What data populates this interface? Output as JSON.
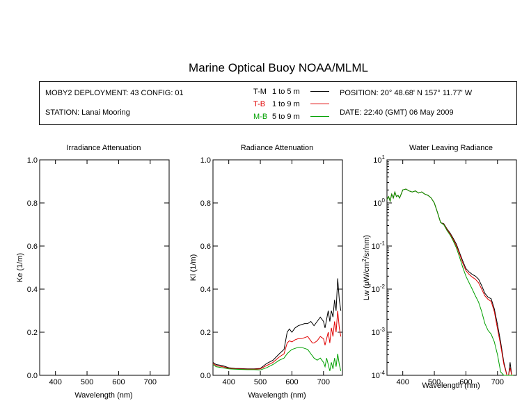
{
  "header": {
    "title": "Marine Optical Buoy NOAA/MLML",
    "deployment": "MOBY2 DEPLOYMENT: 43 CONFIG: 01",
    "station": "STATION: Lanai Mooring",
    "position": "POSITION: 20° 48.68' N   157° 11.77' W",
    "date": "DATE: 22:40 (GMT) 06 May 2009"
  },
  "legend": [
    {
      "code": "T-M",
      "range": "1 to 5  m",
      "color": "#000000"
    },
    {
      "code": "T-B",
      "range": "1 to 9  m",
      "color": "#e00000"
    },
    {
      "code": "M-B",
      "range": "5 to 9  m",
      "color": "#00a000"
    }
  ],
  "chart_data": [
    {
      "type": "line",
      "title": "Irradiance Attenuation",
      "xlabel": "Wavelength (nm)",
      "ylabel": "Ke  (1/m)",
      "xlim": [
        350,
        760
      ],
      "ylim": [
        0,
        1.0
      ],
      "xticks": [
        "400",
        "500",
        "600",
        "700"
      ],
      "yticks": [
        "0.0",
        "0.2",
        "0.4",
        "0.6",
        "0.8",
        "1.0"
      ],
      "series": []
    },
    {
      "type": "line",
      "title": "Radiance Attenuation",
      "xlabel": "Wavelength (nm)",
      "ylabel": "Kl  (1/m)",
      "xlim": [
        350,
        760
      ],
      "ylim": [
        0,
        1.0
      ],
      "xticks": [
        "400",
        "500",
        "600",
        "700"
      ],
      "yticks": [
        "0.0",
        "0.2",
        "0.4",
        "0.6",
        "0.8",
        "1.0"
      ],
      "series": [
        {
          "name": "T-M",
          "color": "#000000",
          "x": [
            350,
            360,
            380,
            400,
            420,
            440,
            460,
            480,
            500,
            520,
            540,
            560,
            575,
            585,
            592,
            600,
            610,
            620,
            630,
            640,
            650,
            660,
            665,
            670,
            680,
            690,
            700,
            705,
            710,
            715,
            720,
            725,
            730,
            735,
            740,
            745,
            750,
            755
          ],
          "y": [
            0.06,
            0.05,
            0.045,
            0.035,
            0.032,
            0.031,
            0.03,
            0.03,
            0.032,
            0.055,
            0.07,
            0.1,
            0.12,
            0.2,
            0.215,
            0.2,
            0.22,
            0.23,
            0.235,
            0.24,
            0.24,
            0.25,
            0.24,
            0.23,
            0.25,
            0.27,
            0.25,
            0.22,
            0.26,
            0.3,
            0.25,
            0.3,
            0.27,
            0.35,
            0.3,
            0.45,
            0.35,
            0.3
          ]
        },
        {
          "name": "T-B",
          "color": "#e00000",
          "x": [
            350,
            360,
            380,
            400,
            420,
            440,
            460,
            480,
            500,
            520,
            540,
            560,
            575,
            585,
            592,
            600,
            610,
            620,
            630,
            640,
            650,
            660,
            665,
            670,
            680,
            690,
            700,
            705,
            710,
            715,
            720,
            725,
            730,
            735,
            740,
            745,
            750,
            755
          ],
          "y": [
            0.055,
            0.045,
            0.04,
            0.033,
            0.03,
            0.029,
            0.028,
            0.028,
            0.03,
            0.045,
            0.06,
            0.085,
            0.1,
            0.15,
            0.16,
            0.155,
            0.165,
            0.17,
            0.17,
            0.175,
            0.18,
            0.16,
            0.15,
            0.15,
            0.16,
            0.18,
            0.17,
            0.14,
            0.17,
            0.2,
            0.15,
            0.22,
            0.18,
            0.25,
            0.2,
            0.3,
            0.22,
            0.18
          ]
        },
        {
          "name": "M-B",
          "color": "#00a000",
          "x": [
            350,
            360,
            380,
            400,
            420,
            440,
            460,
            480,
            500,
            520,
            540,
            560,
            575,
            585,
            592,
            600,
            610,
            620,
            630,
            640,
            650,
            660,
            665,
            670,
            680,
            690,
            700,
            705,
            710,
            715,
            720,
            725,
            730,
            735,
            740,
            745,
            750,
            755
          ],
          "y": [
            0.05,
            0.04,
            0.035,
            0.03,
            0.028,
            0.027,
            0.026,
            0.026,
            0.025,
            0.035,
            0.05,
            0.07,
            0.08,
            0.1,
            0.11,
            0.12,
            0.125,
            0.13,
            0.13,
            0.125,
            0.12,
            0.1,
            0.09,
            0.08,
            0.07,
            0.08,
            0.06,
            0.04,
            0.08,
            0.05,
            0.02,
            0.06,
            0.03,
            0.08,
            0.04,
            0.1,
            0.05,
            0.02
          ]
        }
      ]
    },
    {
      "type": "line",
      "title": "Water Leaving Radiance",
      "xlabel": "Wavelength (nm)",
      "ylabel_main": "Lw  (μW/cm",
      "ylabel_sup": "2",
      "ylabel_tail": "/sr/nm)",
      "xlim": [
        350,
        760
      ],
      "ylim_log10": [
        -4,
        1
      ],
      "yscale": "log",
      "xticks": [
        "400",
        "500",
        "600",
        "700"
      ],
      "yticks_base": "10",
      "yticks_exp": [
        "1",
        "0",
        "-1",
        "-2",
        "-3",
        "-4"
      ],
      "series": [
        {
          "name": "T-M",
          "color": "#000000",
          "x": [
            350,
            355,
            360,
            365,
            370,
            375,
            380,
            385,
            390,
            395,
            400,
            410,
            420,
            430,
            440,
            450,
            460,
            470,
            480,
            490,
            500,
            510,
            520,
            530,
            540,
            550,
            560,
            570,
            580,
            590,
            600,
            610,
            620,
            630,
            640,
            650,
            660,
            670,
            680,
            690,
            700,
            710,
            720,
            730,
            735,
            740,
            745,
            750
          ],
          "y": [
            1.2,
            1.4,
            1.1,
            1.6,
            1.3,
            1.8,
            1.4,
            1.5,
            1.3,
            1.6,
            2.0,
            2.1,
            1.9,
            1.8,
            1.9,
            1.7,
            1.8,
            1.6,
            1.5,
            1.3,
            1.0,
            0.6,
            0.35,
            0.33,
            0.25,
            0.2,
            0.15,
            0.11,
            0.07,
            0.045,
            0.03,
            0.025,
            0.022,
            0.02,
            0.017,
            0.012,
            0.008,
            0.0065,
            0.006,
            0.0035,
            0.0015,
            0.0006,
            0.0002,
            0.0001,
            0.0001,
            0.0002,
            0.0001,
            0.0001
          ]
        },
        {
          "name": "T-B",
          "color": "#e00000",
          "x": [
            350,
            355,
            360,
            365,
            370,
            375,
            380,
            385,
            390,
            395,
            400,
            410,
            420,
            430,
            440,
            450,
            460,
            470,
            480,
            490,
            500,
            510,
            520,
            530,
            540,
            550,
            560,
            570,
            580,
            590,
            600,
            610,
            620,
            630,
            640,
            650,
            660,
            670,
            680,
            690,
            700,
            710,
            720,
            730,
            735,
            740,
            745,
            750
          ],
          "y": [
            1.2,
            1.4,
            1.1,
            1.6,
            1.3,
            1.8,
            1.4,
            1.5,
            1.3,
            1.6,
            2.0,
            2.1,
            1.9,
            1.8,
            1.9,
            1.7,
            1.8,
            1.6,
            1.5,
            1.3,
            1.0,
            0.6,
            0.35,
            0.32,
            0.24,
            0.19,
            0.14,
            0.1,
            0.065,
            0.04,
            0.027,
            0.022,
            0.019,
            0.017,
            0.014,
            0.01,
            0.007,
            0.0058,
            0.0052,
            0.003,
            0.0012,
            0.0005,
            0.00018,
            0.0001,
            0.0001,
            0.00015,
            0.0001,
            0.0001
          ]
        },
        {
          "name": "M-B",
          "color": "#00a000",
          "x": [
            350,
            355,
            360,
            365,
            370,
            375,
            380,
            385,
            390,
            395,
            400,
            410,
            420,
            430,
            440,
            450,
            460,
            470,
            480,
            490,
            500,
            510,
            520,
            530,
            540,
            550,
            560,
            570,
            580,
            590,
            600,
            610,
            620,
            630,
            640,
            650,
            660,
            670,
            680,
            690,
            700,
            710,
            720,
            730,
            735,
            740,
            745,
            750
          ],
          "y": [
            1.2,
            1.4,
            1.1,
            1.6,
            1.3,
            1.8,
            1.4,
            1.5,
            1.3,
            1.6,
            2.0,
            2.1,
            1.9,
            1.8,
            1.9,
            1.7,
            1.8,
            1.6,
            1.5,
            1.3,
            1.0,
            0.6,
            0.35,
            0.31,
            0.23,
            0.18,
            0.13,
            0.09,
            0.055,
            0.032,
            0.02,
            0.014,
            0.01,
            0.007,
            0.005,
            0.003,
            0.0016,
            0.0011,
            0.0009,
            0.0006,
            0.0003,
            0.00012,
            0.0001,
            0.0001,
            0.0001,
            0.0001,
            0.0001,
            0.0001
          ]
        }
      ]
    }
  ]
}
